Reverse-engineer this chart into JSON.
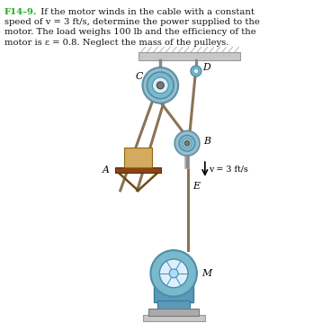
{
  "background_color": "#ffffff",
  "text_color": "#111111",
  "title_color": "#22aa22",
  "pulley_outer": "#7ab8cc",
  "pulley_mid": "#a8d4e4",
  "pulley_inner": "#d8eef5",
  "pulley_rim": "#4a8fa8",
  "pulley_hub": "#888888",
  "cable_color": "#8B7355",
  "load_fill": "#d4aa60",
  "load_edge": "#8B6914",
  "platform_fill": "#8B4513",
  "ceiling_fill": "#c8c8c8",
  "ceiling_edge": "#999999",
  "motor_body": "#5a9ab8",
  "motor_dark": "#3a7a98",
  "motor_base": "#aaaaaa",
  "support_gray": "#888888",
  "line1_bold": "F14–9.",
  "line1_rest": "  If the motor winds in the cable with a constant",
  "line2": "speed of v = 3 ft/s, determine the power supplied to the",
  "line3": "motor. The load weighs 100 lb and the efficiency of the",
  "line4": "motor is ε = 0.8. Neglect the mass of the pulleys.",
  "label_C": "C",
  "label_D": "D",
  "label_B": "B",
  "label_A": "A",
  "label_E": "E",
  "label_M": "M",
  "label_v": "v = 3 ft/s"
}
